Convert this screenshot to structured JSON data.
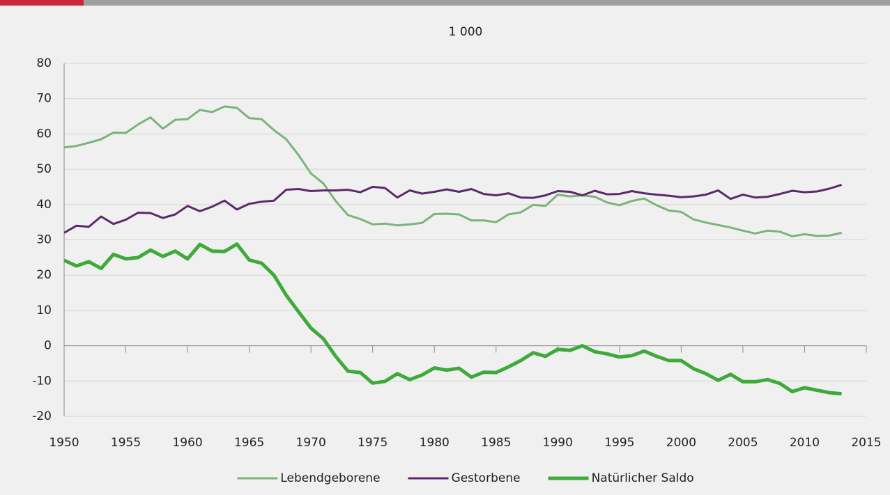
{
  "chart_data": {
    "type": "line",
    "title": "1 000",
    "x": [
      1950,
      1951,
      1952,
      1953,
      1954,
      1955,
      1956,
      1957,
      1958,
      1959,
      1960,
      1961,
      1962,
      1963,
      1964,
      1965,
      1966,
      1967,
      1968,
      1969,
      1970,
      1971,
      1972,
      1973,
      1974,
      1975,
      1976,
      1977,
      1978,
      1979,
      1980,
      1981,
      1982,
      1983,
      1984,
      1985,
      1986,
      1987,
      1988,
      1989,
      1990,
      1991,
      1992,
      1993,
      1994,
      1995,
      1996,
      1997,
      1998,
      1999,
      2000,
      2001,
      2002,
      2003,
      2004,
      2005,
      2006,
      2007,
      2008,
      2009,
      2010,
      2011,
      2012,
      2013
    ],
    "series": [
      {
        "name": "Lebendgeborene",
        "color": "#7ab47a",
        "values": [
          56.2,
          56.6,
          57.5,
          58.5,
          60.4,
          60.3,
          62.7,
          64.7,
          61.5,
          64.0,
          64.2,
          66.8,
          66.2,
          67.8,
          67.4,
          64.5,
          64.2,
          61.1,
          58.5,
          54.0,
          48.8,
          46.0,
          41.0,
          37.0,
          35.9,
          34.4,
          34.6,
          34.1,
          34.4,
          34.8,
          37.3,
          37.4,
          37.2,
          35.5,
          35.5,
          35.0,
          37.2,
          37.8,
          39.9,
          39.6,
          42.8,
          42.3,
          42.6,
          42.2,
          40.6,
          39.8,
          41.0,
          41.7,
          39.8,
          38.3,
          37.9,
          35.8,
          34.9,
          34.2,
          33.5,
          32.6,
          31.8,
          32.6,
          32.3,
          31.0,
          31.6,
          31.1,
          31.2,
          32.0
        ]
      },
      {
        "name": "Gestorbene",
        "color": "#5a2a6c",
        "values": [
          32.0,
          34.0,
          33.7,
          36.6,
          34.5,
          35.7,
          37.7,
          37.6,
          36.2,
          37.2,
          39.6,
          38.1,
          39.4,
          41.1,
          38.6,
          40.2,
          40.8,
          41.1,
          44.2,
          44.4,
          43.8,
          44.0,
          44.0,
          44.2,
          43.5,
          45.0,
          44.7,
          42.0,
          44.0,
          43.1,
          43.6,
          44.3,
          43.6,
          44.4,
          43.0,
          42.6,
          43.2,
          42.0,
          41.9,
          42.6,
          43.8,
          43.6,
          42.6,
          43.9,
          42.9,
          43.0,
          43.8,
          43.2,
          42.8,
          42.5,
          42.1,
          42.3,
          42.8,
          44.0,
          41.6,
          42.8,
          42.0,
          42.2,
          43.0,
          43.9,
          43.5,
          43.7,
          44.5,
          45.6
        ]
      },
      {
        "name": "Natürlicher Saldo",
        "color": "#3daa3a",
        "values": [
          24.2,
          22.6,
          23.8,
          21.9,
          25.9,
          24.6,
          25.0,
          27.1,
          25.3,
          26.8,
          24.6,
          28.7,
          26.8,
          26.7,
          28.8,
          24.3,
          23.4,
          20.0,
          14.3,
          9.6,
          5.0,
          2.0,
          -3.0,
          -7.2,
          -7.6,
          -10.6,
          -10.1,
          -7.9,
          -9.6,
          -8.3,
          -6.3,
          -6.9,
          -6.4,
          -8.9,
          -7.5,
          -7.6,
          -6.0,
          -4.2,
          -2.0,
          -3.0,
          -1.0,
          -1.3,
          0.0,
          -1.7,
          -2.3,
          -3.2,
          -2.8,
          -1.5,
          -3.0,
          -4.2,
          -4.2,
          -6.5,
          -7.9,
          -9.8,
          -8.1,
          -10.2,
          -10.2,
          -9.6,
          -10.7,
          -13.0,
          -11.9,
          -12.6,
          -13.3,
          -13.6
        ]
      }
    ],
    "xlim": [
      1950,
      2015
    ],
    "xticks": [
      1950,
      1955,
      1960,
      1965,
      1970,
      1975,
      1980,
      1985,
      1990,
      1995,
      2000,
      2005,
      2010,
      2015
    ],
    "ylim": [
      -20,
      80
    ],
    "yticks": [
      -20,
      -10,
      0,
      10,
      20,
      30,
      40,
      50,
      60,
      70,
      80
    ],
    "grid": true,
    "legend": "bottom"
  }
}
